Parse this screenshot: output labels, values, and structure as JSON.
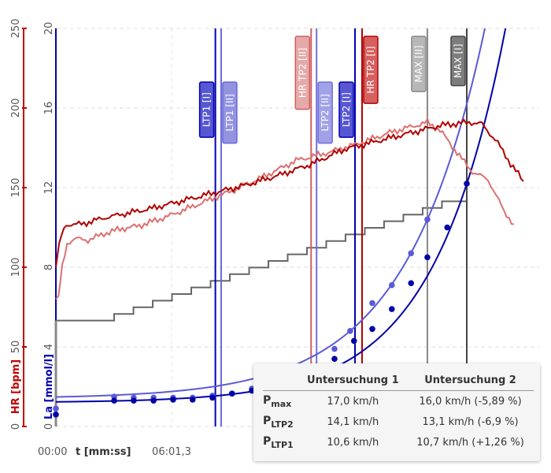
{
  "chart_data": {
    "type": "line",
    "xlabel": "t [mm:ss]",
    "x_ticks": [
      "00:00",
      "06:01,3"
    ],
    "x_range_s": [
      0,
      1460
    ],
    "y_left_hr": {
      "label": "HR [bpm]",
      "ticks": [
        "0",
        "50",
        "100",
        "150",
        "200",
        "250"
      ],
      "range": [
        0,
        250
      ],
      "color": "#c00000"
    },
    "y_left_la": {
      "label": "La [mmol/l]",
      "ticks": [
        "0",
        "4",
        "8",
        "12",
        "16",
        "20"
      ],
      "range": [
        0,
        20
      ],
      "color": "#0000b0"
    },
    "series": [
      {
        "name": "HR Untersuchung 1",
        "color": "#b00000",
        "t": [
          0,
          10,
          25,
          40,
          80,
          150,
          200,
          300,
          400,
          500,
          600,
          700,
          800,
          900,
          1000,
          1100,
          1200,
          1290,
          1330,
          1380,
          1420,
          1460
        ],
        "values": [
          100,
          115,
          125,
          127,
          127,
          131,
          133,
          137,
          142,
          147,
          152,
          158,
          165,
          174,
          179,
          184,
          189,
          191,
          190,
          178,
          165,
          154
        ]
      },
      {
        "name": "HR Untersuchung 2",
        "color": "#dc7070",
        "t": [
          0,
          8,
          20,
          35,
          60,
          100,
          150,
          200,
          260,
          350,
          450,
          550,
          650,
          750,
          850,
          950,
          1050,
          1160,
          1200,
          1260,
          1300,
          1350,
          1400,
          1430
        ],
        "values": [
          80,
          82,
          100,
          115,
          118,
          117,
          121,
          124,
          126,
          132,
          140,
          148,
          157,
          167,
          172,
          178,
          185,
          191,
          186,
          170,
          160,
          155,
          135,
          127
        ]
      },
      {
        "name": "La Untersuchung 1",
        "color": "#0000a8",
        "t": [
          0,
          182,
          243,
          305,
          366,
          427,
          489,
          550,
          612,
          870,
          931,
          988,
          1049,
          1109,
          1160,
          1222,
          1283
        ],
        "values": [
          0.6,
          1.3,
          1.3,
          1.3,
          1.35,
          1.35,
          1.45,
          1.65,
          1.8,
          3.4,
          4.3,
          4.9,
          5.9,
          7.2,
          8.5,
          10.0,
          12.2
        ],
        "fit": {
          "a": 1.2,
          "b": 0.0369,
          "c": 0.00444
        }
      },
      {
        "name": "La Untersuchung 2",
        "color": "#5a5ad8",
        "t": [
          0,
          182,
          243,
          305,
          366,
          427,
          489,
          550,
          612,
          870,
          919,
          988,
          1049,
          1109,
          1160
        ],
        "values": [
          0.9,
          1.5,
          1.45,
          1.45,
          1.45,
          1.45,
          1.55,
          1.65,
          1.9,
          3.9,
          4.8,
          6.2,
          7.1,
          8.7,
          10.4
        ],
        "fit": {
          "a": 1.4,
          "b": 0.083,
          "c": 0.00404
        }
      },
      {
        "name": "Speed",
        "color": "#666666",
        "unit": "km/h",
        "t_step_start": 182,
        "t_step": 60.2,
        "start": 8,
        "increment": 0.5,
        "end": 17
      }
    ],
    "markers": [
      {
        "label": "LTP1 [I]",
        "t": 498,
        "color": "#0000b0",
        "box": "#3a3acc",
        "label_top_la": 17.3
      },
      {
        "label": "LTP1 [II]",
        "t": 516,
        "color": "#6868dd",
        "box": "#8080dd",
        "label_top_la": 17.3
      },
      {
        "label": "HR TP2 [II]",
        "t": 797,
        "color": "#d06060",
        "box": "#e09a9a",
        "label_top_la": 19.6
      },
      {
        "label": "LTP2 [II]",
        "t": 814,
        "color": "#7070dd",
        "box": "#9090e0",
        "label_top_la": 17.3
      },
      {
        "label": "LTP2 [I]",
        "t": 934,
        "color": "#0000b0",
        "box": "#3a3acc",
        "label_top_la": 17.3
      },
      {
        "label": "HR TP2 [I]",
        "t": 956,
        "color": "#b00000",
        "box": "#d04444",
        "label_top_la": 19.6
      },
      {
        "label": "MAX [II]",
        "t": 1160,
        "color": "#888888",
        "box": "#aaaaaa",
        "label_top_la": 19.6
      },
      {
        "label": "MAX [I]",
        "t": 1283,
        "color": "#444444",
        "box": "#666666",
        "label_top_la": 19.6
      }
    ]
  },
  "table": {
    "headers": [
      "",
      "Untersuchung 1",
      "Untersuchung 2"
    ],
    "rows": [
      {
        "p": "P",
        "sub": "max",
        "u1": "17,0 km/h",
        "u2": "16,0 km/h (-5,89 %)"
      },
      {
        "p": "P",
        "sub": "LTP2",
        "u1": "14,1 km/h",
        "u2": "13,1 km/h (-6,9 %)"
      },
      {
        "p": "P",
        "sub": "LTP1",
        "u1": "10,6 km/h",
        "u2": "10,7 km/h (+1,26 %)"
      }
    ]
  }
}
